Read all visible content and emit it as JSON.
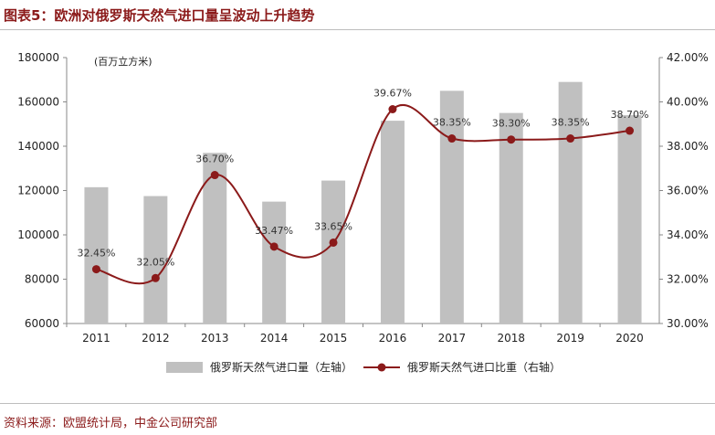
{
  "header": {
    "title": "图表5：欧洲对俄罗斯天然气进口量呈波动上升趋势"
  },
  "footer": {
    "source": "资料来源：欧盟统计局，中金公司研究部"
  },
  "colors": {
    "bar": "#c0c0c0",
    "line": "#8b1a1a",
    "marker": "#8b1a1a",
    "title": "#8b1a1a"
  },
  "chart_data": {
    "type": "bar",
    "categories": [
      "2011",
      "2012",
      "2013",
      "2014",
      "2015",
      "2016",
      "2017",
      "2018",
      "2019",
      "2020"
    ],
    "unit_label": "(百万立方米)",
    "series": [
      {
        "name": "俄罗斯天然气进口量（左轴）",
        "type": "bar",
        "axis": "left",
        "values": [
          121500,
          117500,
          137000,
          115000,
          124500,
          151500,
          165000,
          155000,
          169000,
          154000
        ]
      },
      {
        "name": "俄罗斯天然气进口比重（右轴）",
        "type": "line",
        "axis": "right",
        "values": [
          32.45,
          32.05,
          36.7,
          33.47,
          33.65,
          39.67,
          38.35,
          38.3,
          38.35,
          38.7
        ],
        "labels": [
          "32.45%",
          "32.05%",
          "36.70%",
          "33.47%",
          "33.65%",
          "39.67%",
          "38.35%",
          "38.30%",
          "38.35%",
          "38.70%"
        ]
      }
    ],
    "y_left": {
      "min": 60000,
      "max": 180000,
      "ticks": [
        "60000",
        "80000",
        "100000",
        "120000",
        "140000",
        "160000",
        "180000"
      ]
    },
    "y_right": {
      "min": 30,
      "max": 42,
      "ticks": [
        "30.00%",
        "32.00%",
        "34.00%",
        "36.00%",
        "38.00%",
        "40.00%",
        "42.00%"
      ]
    },
    "legend_position": "bottom",
    "grid": false
  }
}
